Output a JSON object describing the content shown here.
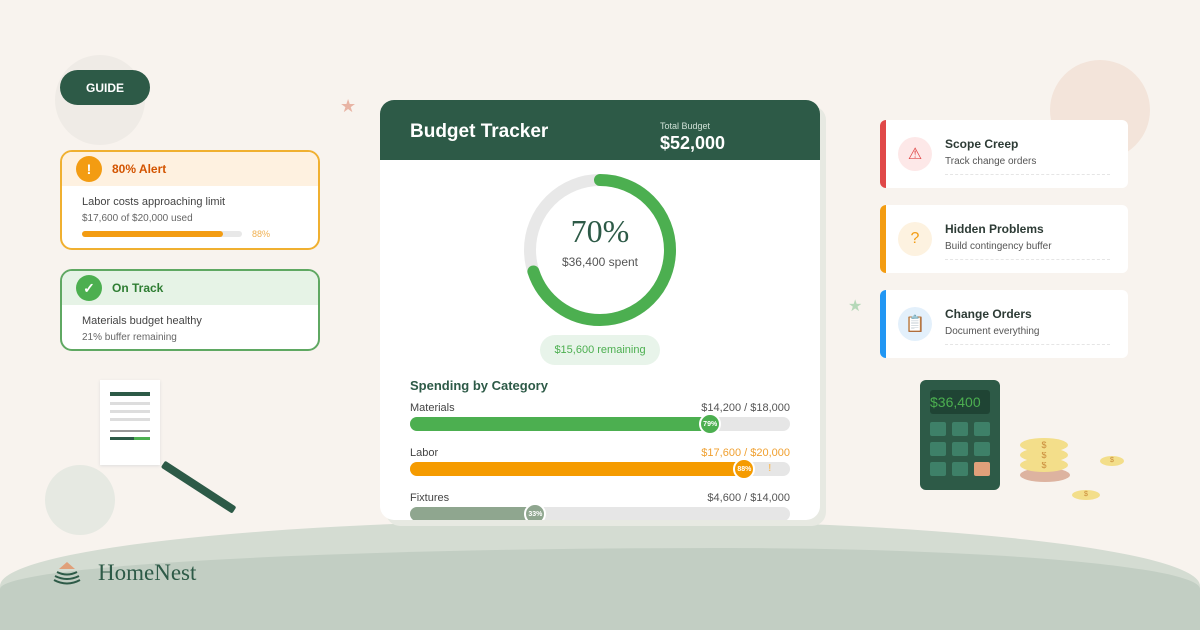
{
  "guide_label": "GUIDE",
  "alerts": [
    {
      "title": "80% Alert",
      "icon": "exclamation-icon",
      "text": "Labor costs approaching limit",
      "sub": "$17,600 of $20,000 used",
      "progress": 88,
      "progress_label": "88%",
      "color": "#f39c12"
    },
    {
      "title": "On Track",
      "icon": "check-icon",
      "text": "Materials budget healthy",
      "sub": "21% buffer remaining",
      "color": "#4caf50"
    }
  ],
  "tracker": {
    "title": "Budget Tracker",
    "total_label": "Total Budget",
    "total_value": "$52,000",
    "percent": 70,
    "percent_label": "70%",
    "spent": "$36,400 spent",
    "remaining": "$15,600 remaining",
    "section_title": "Spending by Category",
    "categories": [
      {
        "name": "Materials",
        "amount": "$14,200 / $18,000",
        "percent": 79,
        "percent_label": "79%",
        "color": "#4caf50"
      },
      {
        "name": "Labor",
        "amount": "$17,600 / $20,000",
        "percent": 88,
        "percent_label": "88%",
        "color": "#f59b00",
        "warning": "!"
      },
      {
        "name": "Fixtures",
        "amount": "$4,600 / $14,000",
        "percent": 33,
        "percent_label": "33%",
        "color": "#8fa68f"
      }
    ]
  },
  "tips": [
    {
      "title": "Scope Creep",
      "sub": "Track change orders",
      "icon": "warning-icon",
      "glyph": "⚠",
      "color": "#e04848",
      "bg": "#fde8e8"
    },
    {
      "title": "Hidden Problems",
      "sub": "Build contingency buffer",
      "icon": "question-icon",
      "glyph": "?",
      "color": "#f39c12",
      "bg": "#fdf2e0"
    },
    {
      "title": "Change Orders",
      "sub": "Document everything",
      "icon": "clipboard-icon",
      "glyph": "📋",
      "color": "#2196f3",
      "bg": "#e3f0fb"
    }
  ],
  "calculator_display": "$36,400",
  "coin_symbol": "$",
  "brand": "HomeNest"
}
